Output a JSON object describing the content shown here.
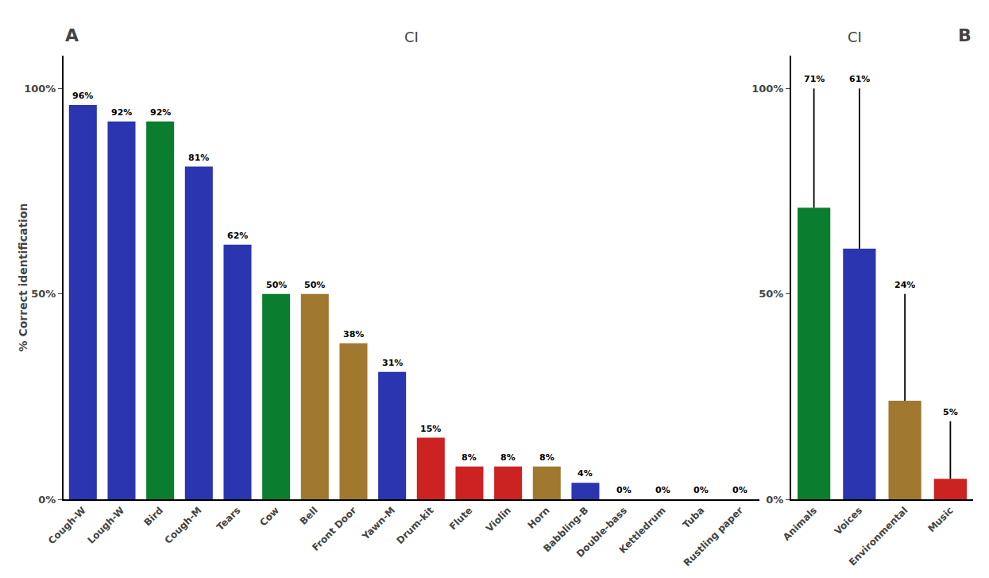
{
  "chart_data": [
    {
      "type": "bar",
      "title": "CI",
      "annotations": [
        "A"
      ],
      "ylabel": "% Correct identification",
      "categories": [
        "Cough-W",
        "Lough-W",
        "Bird",
        "Cough-M",
        "Tears",
        "Cow",
        "Bell",
        "Front Door",
        "Yawn-M",
        "Drum-kit",
        "Flute",
        "Violin",
        "Horn",
        "Babbling-B",
        "Double-bass",
        "Kettledrum",
        "Tuba",
        "Rustling paper"
      ],
      "values": [
        96,
        92,
        92,
        81,
        62,
        50,
        50,
        38,
        31,
        15,
        8,
        8,
        8,
        4,
        0,
        0,
        0,
        0
      ],
      "value_labels": [
        "96%",
        "92%",
        "92%",
        "81%",
        "62%",
        "50%",
        "50%",
        "38%",
        "31%",
        "15%",
        "8%",
        "8%",
        "8%",
        "4%",
        "0%",
        "0%",
        "0%",
        "0%"
      ],
      "colors": [
        "#2B35AF",
        "#2B35AF",
        "#0A7D2E",
        "#2B35AF",
        "#2B35AF",
        "#0A7D2E",
        "#A07830",
        "#A07830",
        "#2B35AF",
        "#CC2222",
        "#CC2222",
        "#CC2222",
        "#A07830",
        "#2B35AF",
        "#CC2222",
        "#CC2222",
        "#CC2222",
        "#A07830"
      ],
      "ylim": [
        0,
        108
      ],
      "yticks": [
        {
          "value": 0,
          "label": "0%"
        },
        {
          "value": 50,
          "label": "50%"
        },
        {
          "value": 100,
          "label": "100%"
        }
      ],
      "data_labels": true,
      "grid": false
    },
    {
      "type": "bar",
      "title": "CI",
      "annotations": [
        "B"
      ],
      "categories": [
        "Animals",
        "Voices",
        "Environmental",
        "Music"
      ],
      "values": [
        71,
        61,
        24,
        5
      ],
      "value_labels": [
        "71%",
        "61%",
        "24%",
        "5%"
      ],
      "error_upper": [
        29,
        39,
        26,
        14
      ],
      "error_lower": [
        0,
        0,
        0,
        0
      ],
      "colors": [
        "#0A7D2E",
        "#2B35AF",
        "#A07830",
        "#CC2222"
      ],
      "ylim": [
        0,
        108
      ],
      "yticks": [
        {
          "value": 0,
          "label": "0%"
        },
        {
          "value": 50,
          "label": "50%"
        },
        {
          "value": 100,
          "label": "100%"
        }
      ],
      "data_labels": true,
      "grid": false
    }
  ]
}
